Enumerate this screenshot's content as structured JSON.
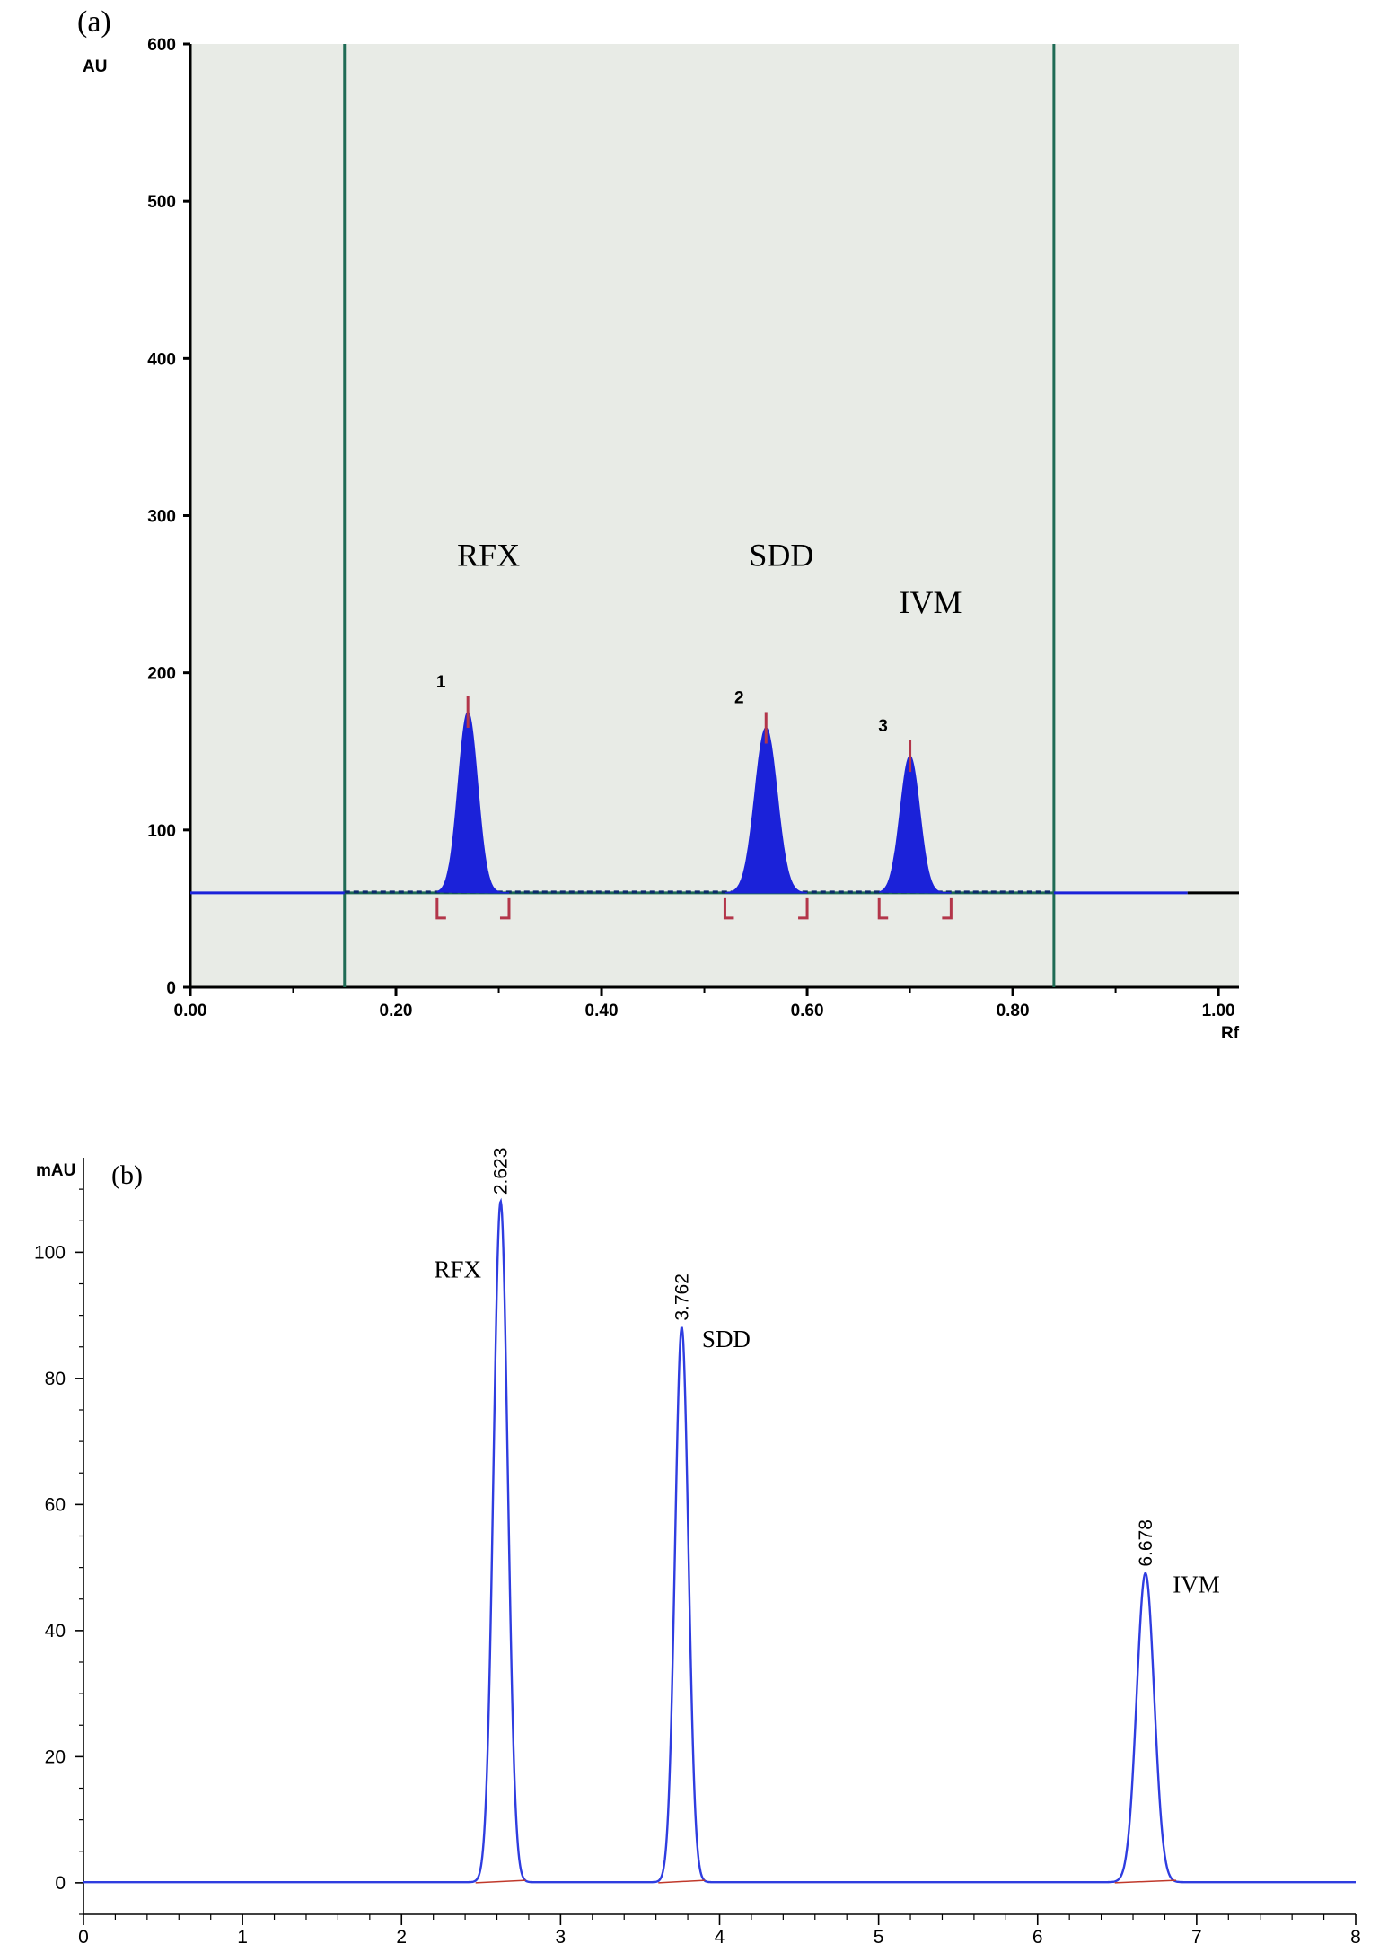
{
  "chart_data": [
    {
      "type": "line",
      "panel_label": "(a)",
      "ylabel": "AU",
      "xlabel": "Rf",
      "xlim": [
        0.0,
        1.02
      ],
      "ylim": [
        0,
        600
      ],
      "x_tick_labels": [
        "0.00",
        "0.20",
        "0.40",
        "0.60",
        "0.80",
        "1.00"
      ],
      "y_tick_labels": [
        "0",
        "100",
        "200",
        "300",
        "400",
        "500",
        "600"
      ],
      "baseline": 60,
      "window_lines_rf": [
        0.15,
        0.84
      ],
      "colors": {
        "background": "#e8ebe6",
        "trace": "#1b22d9",
        "window_line": "#1f6b55",
        "marker": "#b3364a"
      },
      "peaks": [
        {
          "number": "1",
          "name": "RFX",
          "rf": 0.27,
          "height": 185,
          "start": 0.24,
          "end": 0.31
        },
        {
          "number": "2",
          "name": "SDD",
          "rf": 0.56,
          "height": 175,
          "start": 0.52,
          "end": 0.6
        },
        {
          "number": "3",
          "name": "IVM",
          "rf": 0.7,
          "height": 157,
          "start": 0.67,
          "end": 0.74
        }
      ]
    },
    {
      "type": "line",
      "panel_label": "(b)",
      "ylabel": "mAU",
      "xlabel": "",
      "xlim": [
        0,
        8
      ],
      "ylim": [
        -5,
        115
      ],
      "x_tick_labels": [
        "0",
        "1",
        "2",
        "3",
        "4",
        "5",
        "6",
        "7",
        "8"
      ],
      "y_tick_labels": [
        "0",
        "20",
        "40",
        "60",
        "80",
        "100"
      ],
      "colors": {
        "trace": "#2f3de0",
        "baseline_marker": "#c0392b"
      },
      "peaks": [
        {
          "name": "RFX",
          "retention_time": "2.623",
          "x": 2.623,
          "height": 108
        },
        {
          "name": "SDD",
          "retention_time": "3.762",
          "x": 3.762,
          "height": 88
        },
        {
          "name": "IVM",
          "retention_time": "6.678",
          "x": 6.678,
          "height": 49
        }
      ]
    }
  ]
}
